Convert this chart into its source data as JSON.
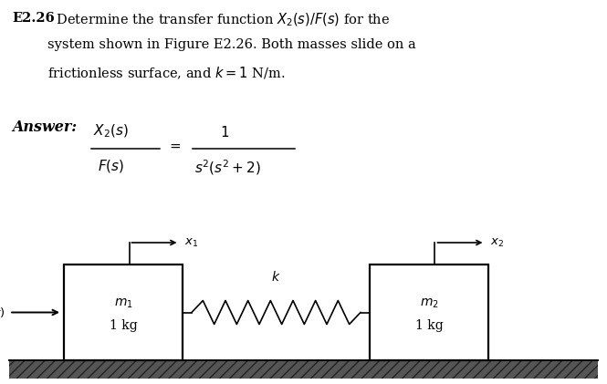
{
  "bg_color": "#ffffff",
  "text_color": "#000000",
  "box_color": "#ffffff",
  "box_edge": "#000000",
  "ground_hatch": "///",
  "title_bold": "E2.26",
  "line1": "  Determine the transfer function $X_2(s)/F(s)$ for the",
  "line2": "system shown in Figure E2.26. Both masses slide on a",
  "line3": "frictionless surface, and $k = 1$ N/m.",
  "answer_word": "Answer:",
  "num_top": "$X_2(s)$",
  "num_bot": "$F(s)$",
  "denom_top": "$1$",
  "denom_bot": "$s^2(s^2 + 2)$",
  "equals": "$=$",
  "mass1_top": "$m_1$",
  "mass1_bot": "1 kg",
  "mass2_top": "$m_2$",
  "mass2_bot": "1 kg",
  "spring_k": "$k$",
  "force_lbl": "$F(t)$",
  "x1_lbl": "$x_1$",
  "x2_lbl": "$x_2$",
  "fig_w": 6.65,
  "fig_h": 4.21,
  "dpi": 100
}
